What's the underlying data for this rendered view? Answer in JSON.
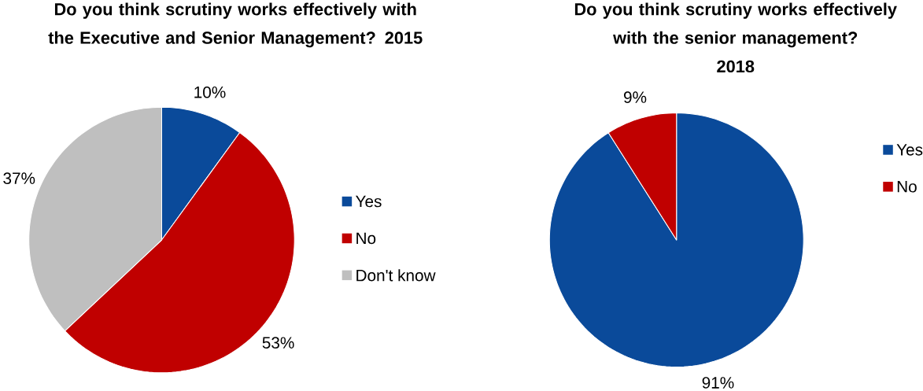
{
  "chart_data": [
    {
      "type": "pie",
      "title": "Do you think scrutiny works effectively with the Executive and Senior Management? 2015",
      "categories": [
        "Yes",
        "No",
        "Don't know"
      ],
      "values": [
        10,
        53,
        37
      ],
      "colors": [
        "#0a4a9a",
        "#c00000",
        "#bfbfbf"
      ],
      "value_labels": [
        "10%",
        "53%",
        "37%"
      ],
      "legend": "right"
    },
    {
      "type": "pie",
      "title": "Do you think scrutiny works effectively with the senior management?",
      "subtitle": "2018",
      "categories": [
        "Yes",
        "No"
      ],
      "values": [
        91,
        9
      ],
      "colors": [
        "#0a4a9a",
        "#c00000"
      ],
      "value_labels": [
        "91%",
        "9%"
      ],
      "legend": "top right"
    }
  ]
}
